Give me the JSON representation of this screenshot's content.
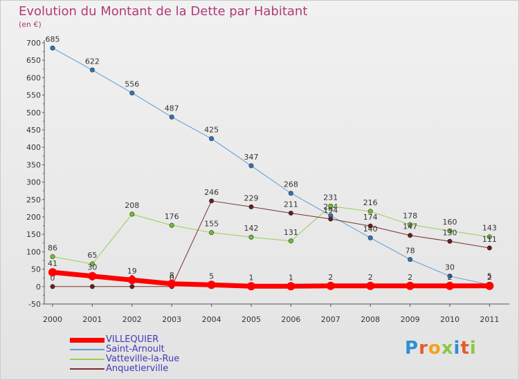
{
  "title": "Evolution du Montant de la Dette par Habitant",
  "unit": "(en €)",
  "logo": {
    "letters": [
      "P",
      "r",
      "o",
      "x",
      "i",
      "t",
      "i"
    ],
    "colors": [
      "#2e8fd1",
      "#e55b2b",
      "#f4a21b",
      "#8cc63f",
      "#2e8fd1",
      "#e55b2b",
      "#8cc63f"
    ]
  },
  "chart_data": {
    "type": "line",
    "title": "Evolution du Montant de la Dette par Habitant",
    "ylabel": "(en €)",
    "xlabel": "",
    "ylim": [
      -50,
      700
    ],
    "yticks": [
      -50,
      0,
      50,
      100,
      150,
      200,
      250,
      300,
      350,
      400,
      450,
      500,
      550,
      600,
      650,
      700
    ],
    "x": [
      "2000",
      "2001",
      "2002",
      "2003",
      "2004",
      "2005",
      "2006",
      "2007",
      "2008",
      "2009",
      "2010",
      "2011"
    ],
    "grid": false,
    "legend_position": "bottom-left",
    "series": [
      {
        "name": "Saint-Arnoult",
        "color": "#5b9bd5",
        "point_color": "#2f75b5",
        "line_width": 1,
        "values": [
          685,
          622,
          556,
          487,
          425,
          347,
          268,
          204,
          140,
          78,
          30,
          5
        ]
      },
      {
        "name": "Vatteville-la-Rue",
        "color": "#92d050",
        "point_color": "#70c030",
        "line_width": 1,
        "values": [
          86,
          65,
          208,
          176,
          155,
          142,
          131,
          231,
          216,
          178,
          160,
          143
        ]
      },
      {
        "name": "Anquetierville",
        "color": "#7b2c2c",
        "point_color": "#6a1d1d",
        "line_width": 1,
        "values": [
          0,
          0,
          0,
          0,
          246,
          229,
          211,
          194,
          174,
          147,
          130,
          111
        ]
      },
      {
        "name": "VILLEQUIER",
        "color": "#ff0000",
        "point_color": "#ff0000",
        "line_width": 7,
        "values": [
          41,
          30,
          19,
          8,
          5,
          1,
          1,
          2,
          2,
          2,
          2,
          2
        ]
      }
    ],
    "labels": [
      [
        "685",
        "622",
        "556",
        "487",
        "425",
        "347",
        "268",
        "204",
        "140",
        "78",
        "30",
        "5"
      ],
      [
        "86",
        "65",
        "208",
        "176",
        "155",
        "142",
        "131",
        "231",
        "216",
        "178",
        "160",
        "143"
      ],
      [
        "0",
        "0",
        "0",
        "0",
        "246",
        "229",
        "211",
        "194",
        "174",
        "147",
        "130",
        "111"
      ],
      [
        "41",
        "30",
        "19",
        "8",
        "5",
        "1",
        "1",
        "2",
        "2",
        "2",
        "2",
        "2"
      ]
    ],
    "legend": [
      "VILLEQUIER",
      "Saint-Arnoult",
      "Vatteville-la-Rue",
      "Anquetierville"
    ]
  }
}
